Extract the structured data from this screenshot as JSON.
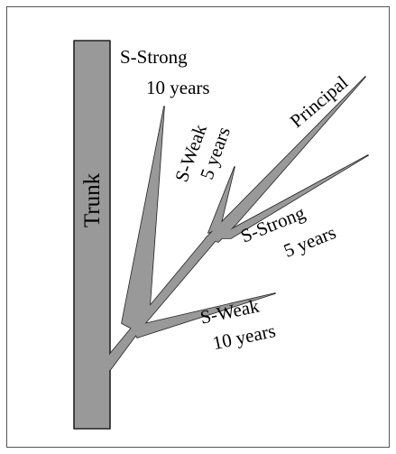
{
  "trunk_label": "Trunk",
  "branches": [
    {
      "name": "S-Strong",
      "age": "10 years"
    },
    {
      "name": "S-Weak",
      "age": "5 years"
    },
    {
      "name": "Principal"
    },
    {
      "name": "S-Strong",
      "age": "5 years"
    },
    {
      "name": "S-Weak",
      "age": "10 years"
    }
  ]
}
